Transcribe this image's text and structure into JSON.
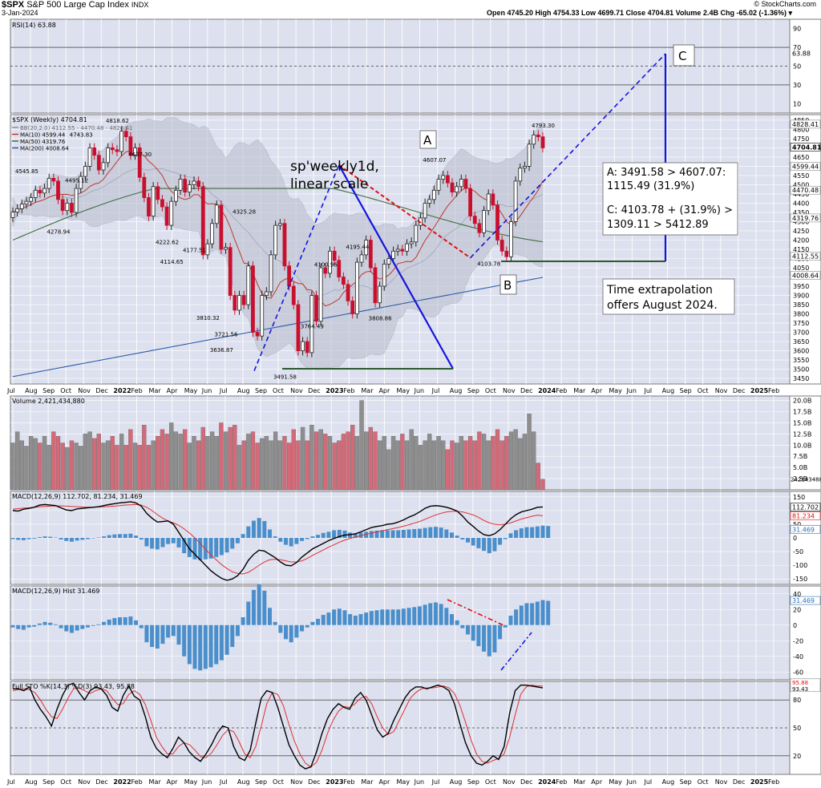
{
  "header": {
    "symbol": "$SPX",
    "name": "S&P 500 Large Cap Index",
    "exchange": "INDX",
    "date": "3-Jan-2024",
    "credit": "© StockCharts.com",
    "ohlc": "Open 4745.20  High 4754.33  Low 4699.71  Close 4704.81  Volume 2.4B  Chg -65.02 (-1.36%) ▾"
  },
  "colors": {
    "up": "#222222",
    "down": "#c8102e",
    "ma10": "#c0392b",
    "ma50": "#3d6e3d",
    "ma200": "#2b5da8",
    "annot_blue": "#1515dd",
    "annot_green": "#2d5a2d",
    "panel_bg": "#dde0ee",
    "vol_up": "#8e8e8e",
    "vol_down": "#d46a78",
    "macd_hist": "#4a8fcb"
  },
  "chart_data": [
    {
      "panel": "rsi",
      "type": "line",
      "title": "RSI(14) 63.88",
      "y_ticks": [
        "90",
        "70",
        "50",
        "30",
        "10"
      ],
      "last_value_label": "63.88",
      "levels": [
        70,
        50,
        30
      ],
      "values": [
        63,
        67,
        60,
        56,
        60,
        66,
        62,
        53,
        45,
        50,
        45,
        55,
        61,
        66,
        68,
        69,
        70,
        64,
        56,
        68,
        60,
        52,
        58,
        57,
        48,
        41,
        40,
        50,
        57,
        45,
        36,
        42,
        33,
        34,
        36,
        34,
        44,
        40,
        44,
        50,
        53,
        56,
        55,
        56,
        47,
        42,
        56,
        44,
        56,
        68,
        63,
        60,
        54,
        58,
        52,
        51,
        46,
        48,
        53,
        55,
        58,
        56,
        49,
        57,
        59,
        56,
        52,
        49,
        56,
        58,
        60,
        60,
        60,
        60,
        58,
        60,
        60,
        64,
        65,
        66,
        68,
        67,
        65,
        68,
        71,
        68,
        66,
        62,
        52,
        50,
        56,
        50,
        47,
        42,
        40,
        44,
        57,
        60,
        66,
        70,
        71,
        68,
        64
      ],
      "ylim": [
        0,
        100
      ]
    },
    {
      "panel": "price",
      "type": "candlestick",
      "title": "$SPX (Weekly) 4704.81",
      "legend": [
        "BB(20,2.0) 4112.55 - 4470.48 - 4828.41",
        "MA(10) 4599.44",
        "MA(50) 4319.76",
        "MA(200) 4008.64"
      ],
      "x_labels": [
        "Jul",
        "Aug",
        "Sep",
        "Oct",
        "Nov",
        "Dec",
        "2022",
        "Feb",
        "Mar",
        "Apr",
        "May",
        "Jun",
        "Jul",
        "Aug",
        "Sep",
        "Oct",
        "Nov",
        "Dec",
        "2023",
        "Feb",
        "Mar",
        "Apr",
        "May",
        "Jun",
        "Jul",
        "Aug",
        "Sep",
        "Oct",
        "Nov",
        "Dec",
        "2024",
        "Feb",
        "Mar",
        "Apr",
        "May",
        "Jun",
        "Jul",
        "Aug",
        "Sep",
        "Oct",
        "Nov",
        "Dec",
        "2025",
        "Feb"
      ],
      "y_ticks": [
        "4850",
        "4800",
        "4750",
        "4700",
        "4650",
        "4600",
        "4550",
        "4500",
        "4450",
        "4400",
        "4350",
        "4300",
        "4250",
        "4200",
        "4150",
        "4100",
        "4050",
        "4000",
        "3950",
        "3900",
        "3850",
        "3800",
        "3750",
        "3700",
        "3650",
        "3600",
        "3550",
        "3500",
        "3450"
      ],
      "right_labels": [
        "4828.41",
        "4704.81",
        "4599.44",
        "4470.48",
        "4319.76",
        "4112.55",
        "4008.64"
      ],
      "closes": [
        4352,
        4370,
        4395,
        4410,
        4430,
        4470,
        4455,
        4480,
        4535,
        4520,
        4420,
        4360,
        4400,
        4350,
        4480,
        4545,
        4600,
        4700,
        4660,
        4580,
        4620,
        4700,
        4690,
        4680,
        4790,
        4760,
        4660,
        4700,
        4540,
        4430,
        4330,
        4490,
        4420,
        4380,
        4280,
        4410,
        4470,
        4530,
        4460,
        4500,
        4520,
        4490,
        4120,
        4180,
        4290,
        4390,
        4150,
        4160,
        3900,
        3820,
        3900,
        3850,
        4060,
        3700,
        3680,
        3900,
        3920,
        4120,
        4280,
        4290,
        4060,
        3950,
        3850,
        3600,
        3650,
        3590,
        3900,
        3760,
        4050,
        4020,
        4140,
        4090,
        4000,
        3960,
        3870,
        3800,
        4080,
        4120,
        4200,
        4050,
        3860,
        3950,
        4070,
        4100,
        4140,
        4150,
        4140,
        4180,
        4190,
        4280,
        4320,
        4400,
        4420,
        4470,
        4530,
        4550,
        4510,
        4460,
        4490,
        4530,
        4480,
        4330,
        4290,
        4240,
        4360,
        4450,
        4390,
        4200,
        4140,
        4110,
        4300,
        4520,
        4590,
        4600,
        4720,
        4770,
        4760,
        4700
      ],
      "point_labels": [
        {
          "text": "4545.85",
          "close": 4545.85
        },
        {
          "text": "4278.94",
          "close": 4278.94
        },
        {
          "text": "4495.12",
          "close": 4495.12
        },
        {
          "text": "4743.83",
          "close": 4743.83
        },
        {
          "text": "4818.62",
          "close": 4818.62
        },
        {
          "text": "4637.30",
          "close": 4637.3
        },
        {
          "text": "4222.62",
          "close": 4222.62
        },
        {
          "text": "4114.65",
          "close": 4114.65
        },
        {
          "text": "4177.51",
          "close": 4177.51
        },
        {
          "text": "3810.32",
          "close": 3810.32
        },
        {
          "text": "3636.87",
          "close": 3636.87
        },
        {
          "text": "3721.56",
          "close": 3721.56
        },
        {
          "text": "4325.28",
          "close": 4325.28
        },
        {
          "text": "3491.58",
          "close": 3491.58
        },
        {
          "text": "3764.49",
          "close": 3764.49
        },
        {
          "text": "4100.96",
          "close": 4100.96
        },
        {
          "text": "4195.44",
          "close": 4195.44
        },
        {
          "text": "3808.86",
          "close": 3808.86
        },
        {
          "text": "4607.07",
          "close": 4607.07
        },
        {
          "text": "4103.78",
          "close": 4103.78
        },
        {
          "text": "4793.30",
          "close": 4793.3
        }
      ],
      "annotations": {
        "text_1": "sp'weekly1d,",
        "text_2": "linear scale",
        "box_1": "A: 3491.58 > 4607.07:",
        "box_2": "1115.49 (31.9%)",
        "box_3": "C: 4103.78 + (31.9%) >",
        "box_4": "1309.11 > 5412.89",
        "box_5": "Time extrapolation",
        "box_6": "offers August 2024.",
        "point_a": "A",
        "point_b": "B",
        "point_c": "C"
      }
    },
    {
      "panel": "volume",
      "type": "bar",
      "title": "Volume 2,421,434,880",
      "y_ticks": [
        "20.0B",
        "17.5B",
        "15.0B",
        "12.5B",
        "10.0B",
        "7.5B",
        "5.0B",
        "2.5B"
      ],
      "last_value_label": "2421434880",
      "values": [
        10.5,
        13,
        11,
        9.8,
        12,
        11.5,
        10.5,
        12,
        10,
        13,
        12,
        10.5,
        9.5,
        11,
        10.5,
        9.8,
        12.5,
        13,
        11.5,
        12.5,
        10.5,
        11,
        12,
        10,
        12.5,
        10,
        13.5,
        10.5,
        10,
        14.5,
        10,
        11,
        12,
        13.5,
        12.5,
        15,
        13,
        12.5,
        13.5,
        10.5,
        12,
        11,
        14,
        12,
        13,
        12,
        15,
        13,
        14,
        14.5,
        10,
        11,
        12.5,
        13,
        10.5,
        11.5,
        12,
        11,
        13,
        11,
        12,
        10.5,
        13.5,
        11,
        14,
        11,
        14.5,
        13,
        13.5,
        12.5,
        12,
        10.5,
        11,
        12.5,
        13,
        14.5,
        12,
        20,
        13,
        14,
        13,
        11,
        12,
        9,
        12,
        11,
        12.5,
        11,
        13.5,
        12,
        10,
        11,
        12.5,
        11,
        12,
        11,
        9,
        11,
        10.5,
        12,
        11,
        12,
        11,
        13,
        12.5,
        11,
        12,
        13.5,
        11,
        12,
        13,
        13.5,
        11.5,
        12.5,
        17,
        13,
        6,
        2.4
      ],
      "ylim": [
        0,
        21
      ]
    },
    {
      "panel": "macd",
      "type": "line",
      "title": "MACD(12,26,9) 112.702, 81.234, 31.469",
      "y_ticks": [
        "150",
        "100",
        "50",
        "0",
        "-50",
        "-100",
        "-150"
      ],
      "last_value_labels": [
        "112.702",
        "81.234",
        "31.469"
      ],
      "macd": [
        100,
        98,
        105,
        108,
        112,
        120,
        122,
        120,
        118,
        110,
        102,
        100,
        106,
        108,
        110,
        112,
        114,
        118,
        122,
        125,
        128,
        130,
        132,
        128,
        116,
        90,
        72,
        58,
        60,
        62,
        50,
        20,
        -10,
        -40,
        -60,
        -80,
        -100,
        -120,
        -135,
        -148,
        -155,
        -150,
        -138,
        -115,
        -82,
        -60,
        -45,
        -48,
        -60,
        -72,
        -88,
        -100,
        -102,
        -90,
        -70,
        -55,
        -40,
        -30,
        -20,
        -10,
        -2,
        5,
        10,
        12,
        15,
        22,
        30,
        38,
        42,
        45,
        50,
        52,
        58,
        66,
        76,
        84,
        95,
        108,
        116,
        118,
        116,
        112,
        106,
        98,
        80,
        58,
        42,
        25,
        12,
        8,
        15,
        30,
        50,
        70,
        85,
        95,
        100,
        105,
        112,
        113
      ],
      "signal": [
        105,
        107,
        109,
        110,
        112,
        114,
        115,
        116,
        117,
        117,
        116,
        115,
        114,
        113,
        112,
        112,
        113,
        114,
        115,
        116,
        118,
        120,
        121,
        122,
        120,
        112,
        100,
        85,
        72,
        62,
        55,
        46,
        33,
        18,
        0,
        -20,
        -42,
        -62,
        -80,
        -98,
        -112,
        -124,
        -130,
        -132,
        -126,
        -114,
        -100,
        -88,
        -80,
        -78,
        -80,
        -84,
        -88,
        -88,
        -84,
        -75,
        -64,
        -54,
        -44,
        -34,
        -25,
        -16,
        -8,
        -2,
        3,
        8,
        13,
        18,
        22,
        26,
        30,
        34,
        38,
        43,
        48,
        54,
        60,
        68,
        76,
        84,
        90,
        95,
        97,
        97,
        95,
        90,
        84,
        75,
        64,
        55,
        50,
        48,
        50,
        55,
        62,
        69,
        74,
        79,
        83,
        81
      ],
      "ylim": [
        -170,
        170
      ]
    },
    {
      "panel": "macd_hist",
      "type": "bar",
      "title": "MACD(12,26,9) Hist 31.469",
      "y_ticks": [
        "40",
        "20",
        "0",
        "-20",
        "-40",
        "-60"
      ],
      "last_value_label": "31.469",
      "values": [
        -3,
        -5,
        -6,
        -3,
        -2,
        2,
        4,
        3,
        1,
        -4,
        -8,
        -10,
        -7,
        -5,
        -3,
        -1,
        1,
        4,
        7,
        9,
        10,
        10,
        11,
        6,
        -4,
        -22,
        -28,
        -30,
        -24,
        -16,
        -14,
        -25,
        -40,
        -50,
        -56,
        -58,
        -56,
        -54,
        -50,
        -45,
        -38,
        -28,
        -14,
        10,
        30,
        45,
        52,
        44,
        22,
        4,
        -10,
        -18,
        -22,
        -16,
        -8,
        -3,
        4,
        8,
        13,
        16,
        20,
        21,
        19,
        14,
        12,
        14,
        16,
        18,
        19,
        20,
        20,
        20,
        20,
        21,
        22,
        23,
        24,
        26,
        28,
        29,
        27,
        22,
        14,
        6,
        -4,
        -12,
        -20,
        -27,
        -34,
        -40,
        -35,
        -18,
        -3,
        12,
        20,
        25,
        28,
        28,
        30,
        32,
        31
      ],
      "ylim": [
        -70,
        50
      ]
    },
    {
      "panel": "stochastic",
      "type": "line",
      "title": "Full STO %K(14,3) %D(3) 93.43, 95.88",
      "y_ticks": [
        "80",
        "50",
        "20"
      ],
      "last_value_labels": [
        "95.88",
        "93.43"
      ],
      "k": [
        92,
        92,
        90,
        94,
        80,
        70,
        62,
        52,
        70,
        85,
        96,
        98,
        88,
        80,
        90,
        94,
        92,
        85,
        72,
        68,
        85,
        95,
        84,
        80,
        62,
        40,
        28,
        22,
        18,
        28,
        40,
        34,
        24,
        18,
        14,
        22,
        32,
        44,
        52,
        50,
        30,
        18,
        15,
        26,
        55,
        82,
        90,
        88,
        72,
        52,
        32,
        20,
        10,
        6,
        8,
        24,
        44,
        60,
        70,
        76,
        72,
        70,
        82,
        88,
        80,
        64,
        48,
        40,
        44,
        58,
        70,
        82,
        90,
        94,
        94,
        92,
        94,
        96,
        94,
        90,
        76,
        54,
        34,
        20,
        12,
        10,
        14,
        20,
        16,
        30,
        66,
        90,
        96,
        96,
        95,
        94,
        93
      ],
      "d": [
        90,
        91,
        92,
        91,
        88,
        80,
        70,
        62,
        60,
        70,
        82,
        92,
        93,
        90,
        87,
        90,
        92,
        90,
        82,
        75,
        76,
        86,
        90,
        86,
        75,
        58,
        40,
        30,
        22,
        22,
        30,
        34,
        32,
        26,
        19,
        18,
        23,
        32,
        42,
        48,
        46,
        35,
        22,
        18,
        30,
        52,
        76,
        88,
        86,
        74,
        54,
        36,
        22,
        12,
        8,
        13,
        26,
        44,
        58,
        68,
        73,
        72,
        76,
        82,
        84,
        76,
        62,
        50,
        43,
        46,
        58,
        70,
        82,
        88,
        92,
        93,
        93,
        94,
        95,
        93,
        87,
        74,
        56,
        37,
        22,
        14,
        12,
        15,
        17,
        22,
        40,
        64,
        86,
        94,
        96,
        95,
        95
      ],
      "levels": [
        80,
        50,
        20
      ],
      "ylim": [
        0,
        100
      ]
    }
  ]
}
